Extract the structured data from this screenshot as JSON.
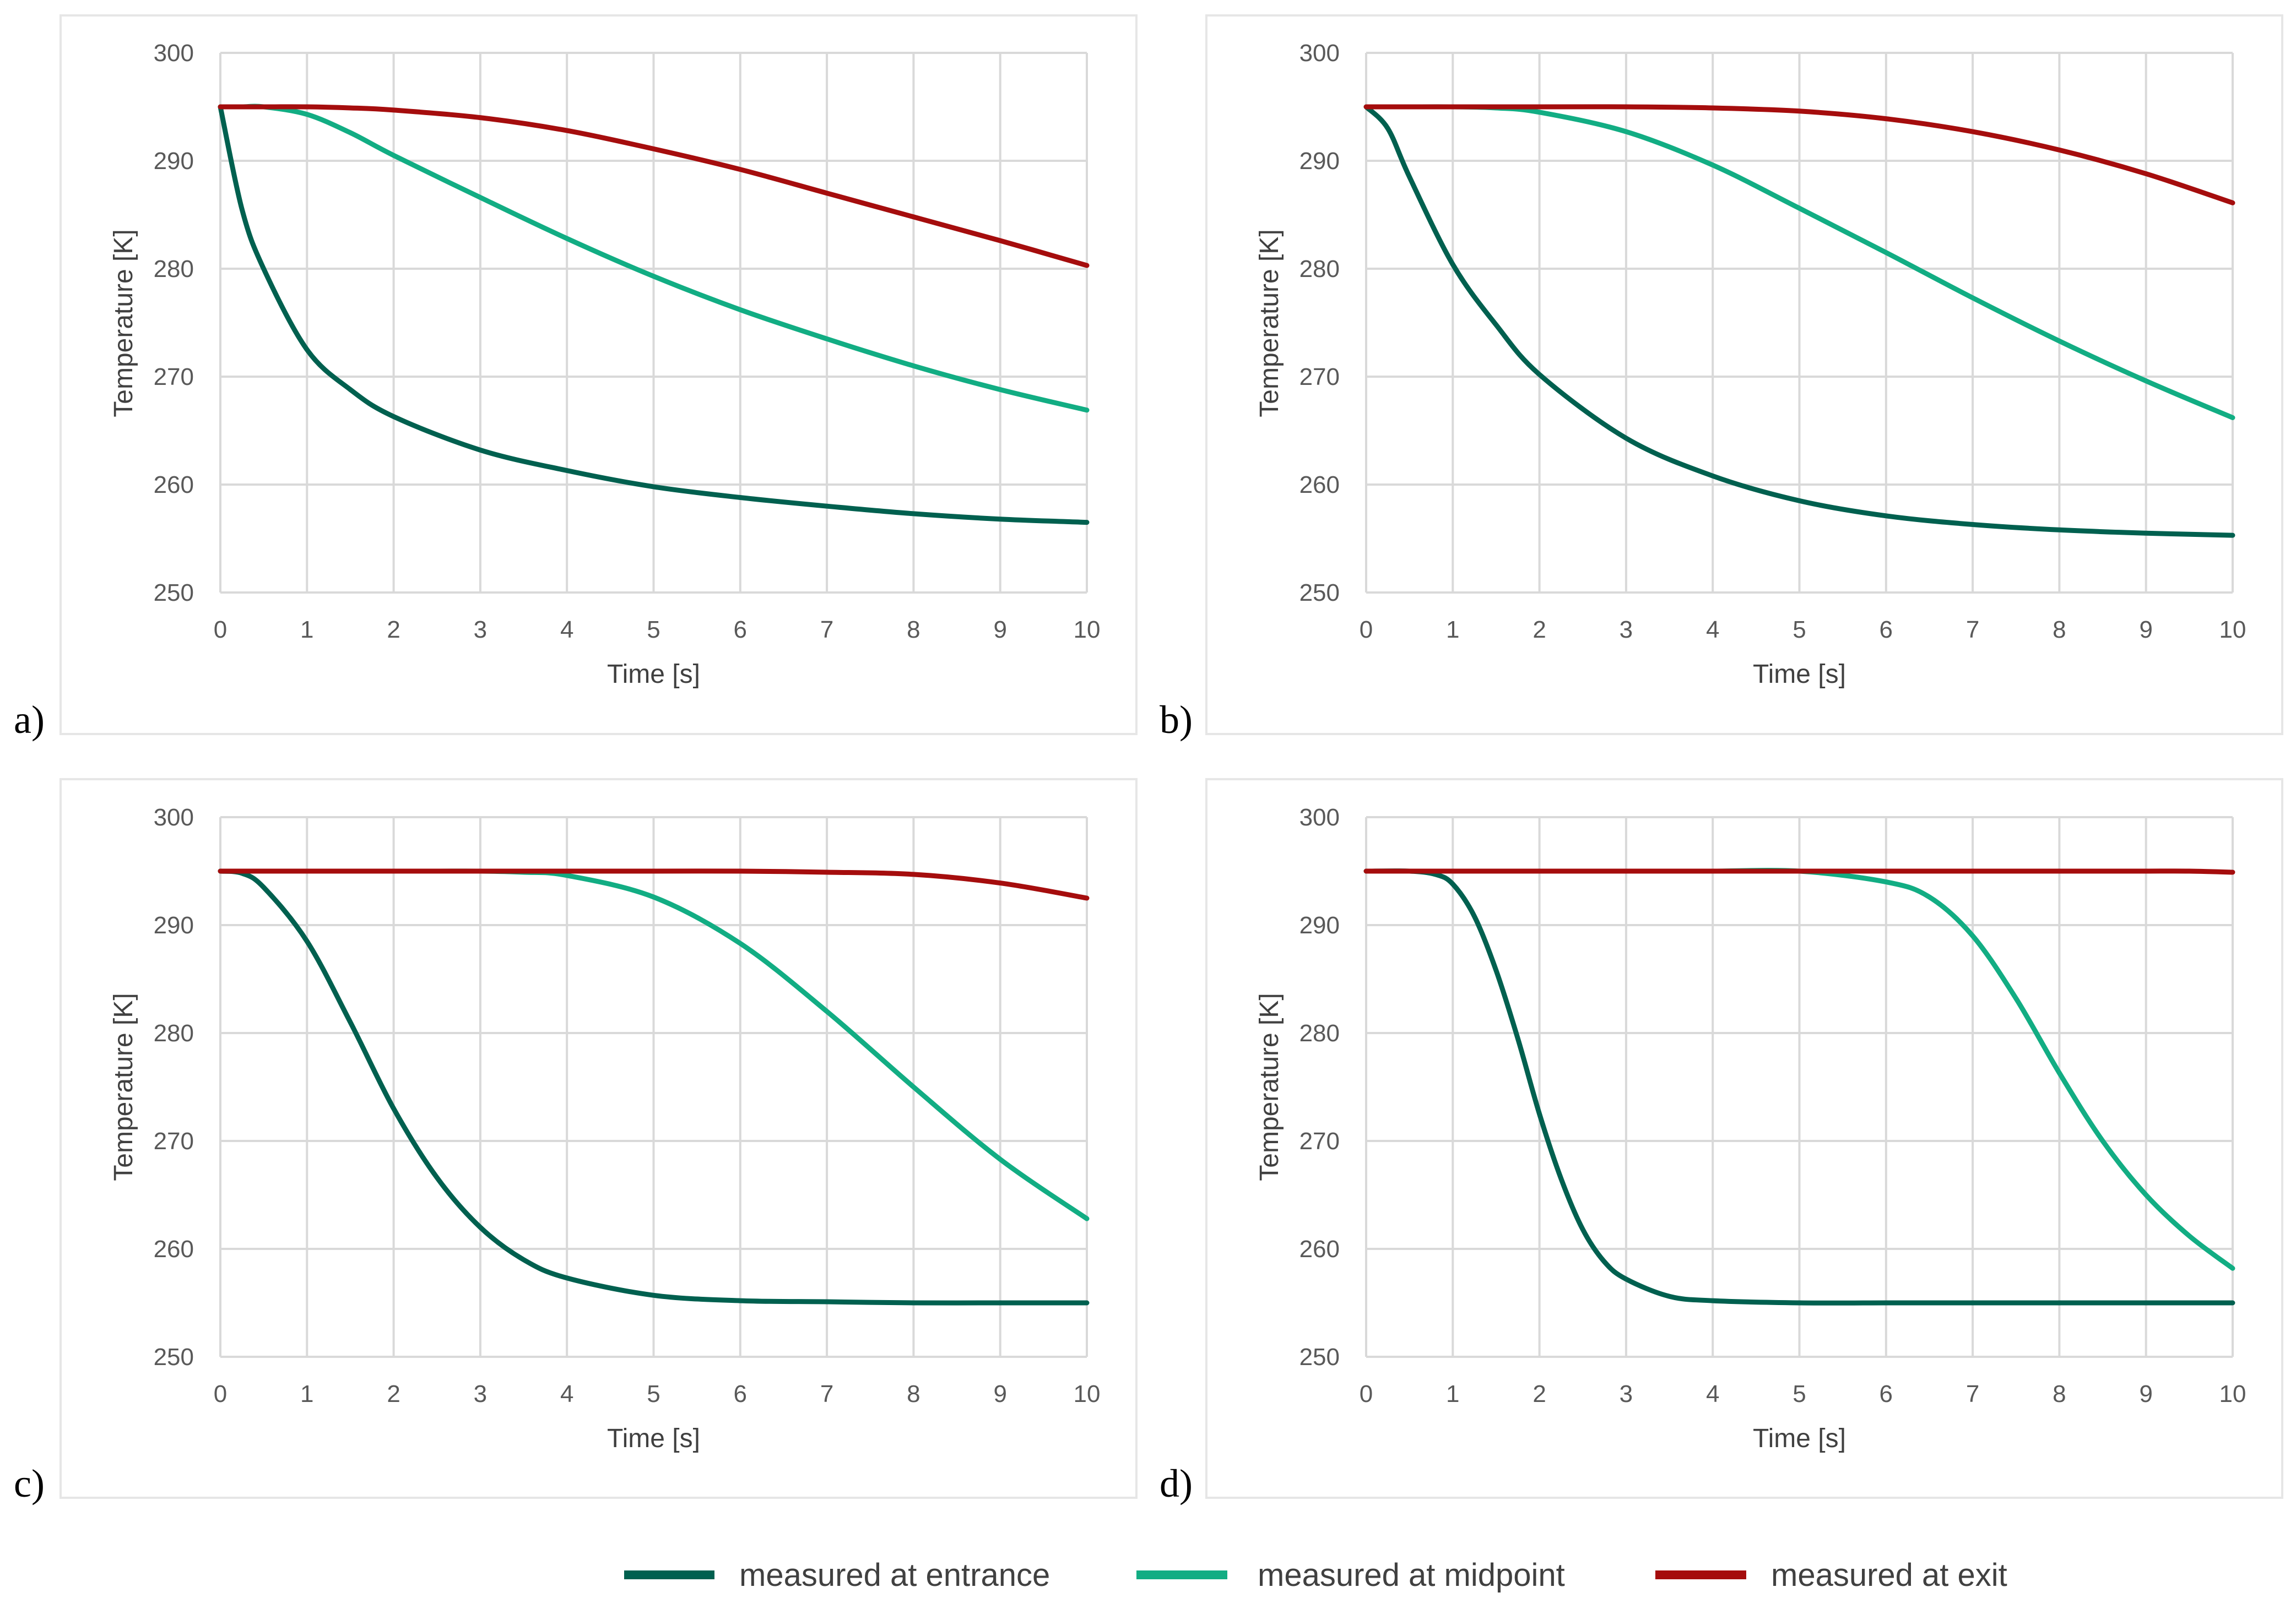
{
  "colors": {
    "entrance": "#00604f",
    "midpoint": "#12ad83",
    "exit": "#a50d0d"
  },
  "legend": [
    {
      "key": "entrance",
      "label": "measured at entrance"
    },
    {
      "key": "midpoint",
      "label": "measured at midpoint"
    },
    {
      "key": "exit",
      "label": "measured at exit"
    }
  ],
  "chart_data": [
    {
      "panel": "a)",
      "type": "line",
      "xlabel": "Time [s]",
      "ylabel": "Temperature [K]",
      "xlim": [
        0,
        10
      ],
      "ylim": [
        250,
        300
      ],
      "xticks": [
        0,
        1,
        2,
        3,
        4,
        5,
        6,
        7,
        8,
        9,
        10
      ],
      "yticks": [
        250,
        260,
        270,
        280,
        290,
        300
      ],
      "grid": true,
      "x": [
        0,
        0.25,
        0.5,
        1,
        1.5,
        2,
        3,
        4,
        5,
        6,
        7,
        8,
        9,
        10
      ],
      "series": [
        {
          "name": "measured at entrance",
          "key": "entrance",
          "values": [
            295,
            285.5,
            280,
            272.5,
            268.8,
            266.3,
            263.2,
            261.3,
            259.8,
            258.8,
            258,
            257.3,
            256.8,
            256.5
          ]
        },
        {
          "name": "measured at midpoint",
          "key": "midpoint",
          "values": [
            295,
            295,
            295,
            294.3,
            292.6,
            290.5,
            286.6,
            282.8,
            279.3,
            276.2,
            273.5,
            271,
            268.8,
            266.9
          ]
        },
        {
          "name": "measured at exit",
          "key": "exit",
          "values": [
            295,
            295,
            295,
            295,
            294.9,
            294.7,
            294,
            292.8,
            291.1,
            289.2,
            287,
            284.8,
            282.6,
            280.3
          ]
        }
      ]
    },
    {
      "panel": "b)",
      "type": "line",
      "xlabel": "Time [s]",
      "ylabel": "Temperature [K]",
      "xlim": [
        0,
        10
      ],
      "ylim": [
        250,
        300
      ],
      "xticks": [
        0,
        1,
        2,
        3,
        4,
        5,
        6,
        7,
        8,
        9,
        10
      ],
      "yticks": [
        250,
        260,
        270,
        280,
        290,
        300
      ],
      "grid": true,
      "x": [
        0,
        0.25,
        0.5,
        1,
        1.5,
        2,
        3,
        4,
        5,
        6,
        7,
        8,
        9,
        10
      ],
      "series": [
        {
          "name": "measured at entrance",
          "key": "entrance",
          "values": [
            295,
            293,
            288.5,
            280.4,
            274.8,
            270.2,
            264.3,
            260.8,
            258.5,
            257.1,
            256.3,
            255.8,
            255.5,
            255.3
          ]
        },
        {
          "name": "measured at midpoint",
          "key": "midpoint",
          "values": [
            295,
            295,
            295,
            295,
            294.9,
            294.5,
            292.7,
            289.6,
            285.6,
            281.5,
            277.3,
            273.3,
            269.6,
            266.2
          ]
        },
        {
          "name": "measured at exit",
          "key": "exit",
          "values": [
            295,
            295,
            295,
            295,
            295,
            295,
            295,
            294.9,
            294.6,
            293.9,
            292.7,
            291,
            288.8,
            286.1
          ]
        }
      ]
    },
    {
      "panel": "c)",
      "type": "line",
      "xlabel": "Time [s]",
      "ylabel": "Temperature [K]",
      "xlim": [
        0,
        10
      ],
      "ylim": [
        250,
        300
      ],
      "xticks": [
        0,
        1,
        2,
        3,
        4,
        5,
        6,
        7,
        8,
        9,
        10
      ],
      "yticks": [
        250,
        260,
        270,
        280,
        290,
        300
      ],
      "grid": true,
      "x": [
        0,
        0.25,
        0.5,
        1,
        1.5,
        2,
        2.5,
        3,
        3.5,
        4,
        5,
        6,
        7,
        8,
        9,
        10
      ],
      "series": [
        {
          "name": "measured at entrance",
          "key": "entrance",
          "values": [
            295,
            294.8,
            293.5,
            288.5,
            281,
            273,
            266.6,
            262,
            259,
            257.3,
            255.7,
            255.2,
            255.1,
            255,
            255,
            255
          ]
        },
        {
          "name": "measured at midpoint",
          "key": "midpoint",
          "values": [
            295,
            295,
            295,
            295,
            295,
            295,
            295,
            295,
            294.9,
            294.6,
            292.6,
            288.3,
            282,
            275,
            268.3,
            262.8
          ]
        },
        {
          "name": "measured at exit",
          "key": "exit",
          "values": [
            295,
            295,
            295,
            295,
            295,
            295,
            295,
            295,
            295,
            295,
            295,
            295,
            294.9,
            294.7,
            293.9,
            292.5
          ]
        }
      ]
    },
    {
      "panel": "d)",
      "type": "line",
      "xlabel": "Time [s]",
      "ylabel": "Temperature [K]",
      "xlim": [
        0,
        10
      ],
      "ylim": [
        250,
        300
      ],
      "xticks": [
        0,
        1,
        2,
        3,
        4,
        5,
        6,
        7,
        8,
        9,
        10
      ],
      "yticks": [
        250,
        260,
        270,
        280,
        290,
        300
      ],
      "grid": true,
      "x": [
        0,
        0.5,
        0.8,
        1,
        1.25,
        1.5,
        1.75,
        2,
        2.25,
        2.5,
        2.75,
        3,
        3.5,
        4,
        5,
        6,
        6.5,
        7,
        7.5,
        8,
        8.5,
        9,
        9.5,
        10
      ],
      "series": [
        {
          "name": "measured at entrance",
          "key": "entrance",
          "values": [
            295,
            295,
            294.7,
            293.8,
            290.8,
            285.8,
            279.5,
            272.5,
            266.5,
            261.8,
            258.8,
            257.2,
            255.6,
            255.2,
            255,
            255,
            255,
            255,
            255,
            255,
            255,
            255,
            255,
            255
          ]
        },
        {
          "name": "measured at midpoint",
          "key": "midpoint",
          "values": [
            295,
            295,
            295,
            295,
            295,
            295,
            295,
            295,
            295,
            295,
            295,
            295,
            295,
            295,
            295,
            294,
            292.6,
            289,
            283.2,
            276.3,
            270,
            265,
            261.2,
            258.2
          ]
        },
        {
          "name": "measured at exit",
          "key": "exit",
          "values": [
            295,
            295,
            295,
            295,
            295,
            295,
            295,
            295,
            295,
            295,
            295,
            295,
            295,
            295,
            295,
            295,
            295,
            295,
            295,
            295,
            295,
            295,
            295,
            294.9
          ]
        }
      ]
    }
  ]
}
